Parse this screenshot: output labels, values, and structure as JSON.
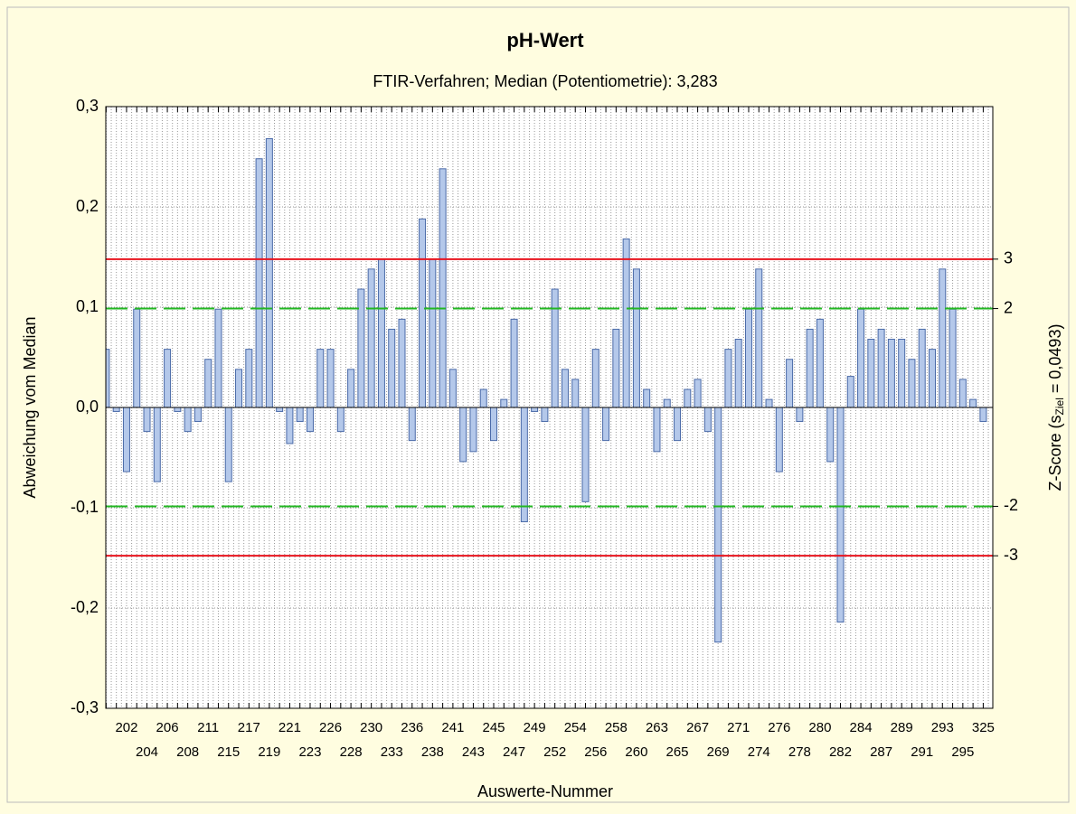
{
  "chart_data": {
    "type": "bar",
    "title": "pH-Wert",
    "subtitle": "FTIR-Verfahren; Median (Potentiometrie): 3,283",
    "y_label": "Abweichung vom Median",
    "x_label": "Auswerte-Nummer",
    "y2_label": [
      "Z-Score (s",
      "Ziel",
      " = 0,0493)"
    ],
    "categories": [
      null,
      null,
      "202",
      null,
      "204",
      null,
      "206",
      null,
      "208",
      null,
      "211",
      null,
      "215",
      null,
      "217",
      null,
      "219",
      null,
      "221",
      null,
      "223",
      null,
      "226",
      null,
      "228",
      null,
      "230",
      null,
      "233",
      null,
      "236",
      null,
      "238",
      null,
      "241",
      null,
      "243",
      null,
      "245",
      null,
      "247",
      null,
      "249",
      null,
      "252",
      null,
      "254",
      null,
      "256",
      null,
      "258",
      null,
      "260",
      null,
      "263",
      null,
      "265",
      null,
      "267",
      null,
      "269",
      null,
      "271",
      null,
      "274",
      null,
      "276",
      null,
      "278",
      null,
      "280",
      null,
      "282",
      null,
      "284",
      null,
      "287",
      null,
      "289",
      null,
      "291",
      null,
      "293",
      null,
      "295",
      null,
      "325"
    ],
    "values": [
      0.058,
      -0.004,
      -0.064,
      0.098,
      -0.024,
      -0.074,
      0.058,
      -0.004,
      -0.024,
      -0.014,
      0.048,
      0.098,
      -0.074,
      0.038,
      0.058,
      0.248,
      0.268,
      -0.004,
      -0.036,
      -0.014,
      -0.024,
      0.058,
      0.058,
      -0.024,
      0.038,
      0.118,
      0.138,
      0.148,
      0.078,
      0.088,
      -0.033,
      0.188,
      0.148,
      0.238,
      0.038,
      -0.054,
      -0.044,
      0.018,
      -0.033,
      0.008,
      0.088,
      -0.114,
      -0.004,
      -0.014,
      0.118,
      0.038,
      0.028,
      -0.094,
      0.058,
      -0.033,
      0.078,
      0.168,
      0.138,
      0.018,
      -0.044,
      0.008,
      -0.033,
      0.018,
      0.028,
      -0.024,
      -0.234,
      0.058,
      0.068,
      0.098,
      0.138,
      0.008,
      -0.064,
      0.048,
      -0.014,
      0.078,
      0.088,
      -0.054,
      -0.214,
      0.031,
      0.098,
      0.068,
      0.078,
      0.068,
      0.068,
      0.048,
      0.078,
      0.058,
      0.138,
      0.098,
      0.028,
      0.008,
      -0.014
    ],
    "color": "#b4c8ea",
    "ylim": [
      -0.3,
      0.3
    ],
    "yticks": [
      {
        "value": -0.3,
        "label": "-0,3"
      },
      {
        "value": -0.2,
        "label": "-0,2"
      },
      {
        "value": -0.1,
        "label": "-0,1"
      },
      {
        "value": 0,
        "label": "0,0"
      },
      {
        "value": 0.1,
        "label": "0,1"
      },
      {
        "value": 0.2,
        "label": "0,2"
      },
      {
        "value": 0.3,
        "label": "0,3"
      }
    ],
    "y2lim": [
      -6.085,
      6.085
    ],
    "y2ticks": [
      -3,
      -2,
      2,
      3
    ],
    "reference_lines": [
      {
        "value": 3,
        "axis": "y2",
        "color": "#e8141e",
        "dashed": false
      },
      {
        "value": 2,
        "axis": "y2",
        "color": "#22b822",
        "dashed": true
      },
      {
        "value": -2,
        "axis": "y2",
        "color": "#22b822",
        "dashed": true
      },
      {
        "value": -3,
        "axis": "y2",
        "color": "#e8141e",
        "dashed": false
      }
    ],
    "grid": true
  }
}
